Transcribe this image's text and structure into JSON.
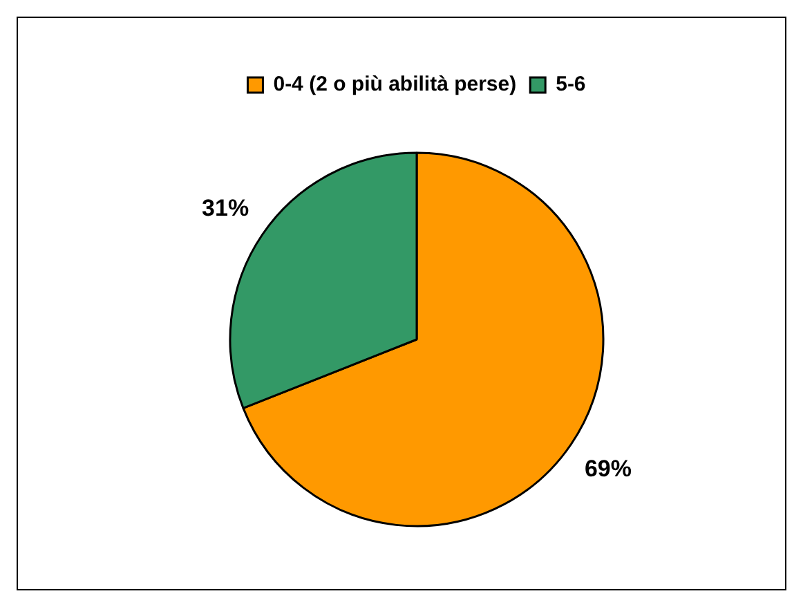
{
  "chart_data": {
    "type": "pie",
    "categories": [
      "0-4 (2 o più abilità perse)",
      "5-6"
    ],
    "values": [
      69,
      31
    ],
    "colors": [
      "#ff9900",
      "#339966"
    ],
    "value_labels": [
      "69%",
      "31%"
    ],
    "legend": "top"
  }
}
